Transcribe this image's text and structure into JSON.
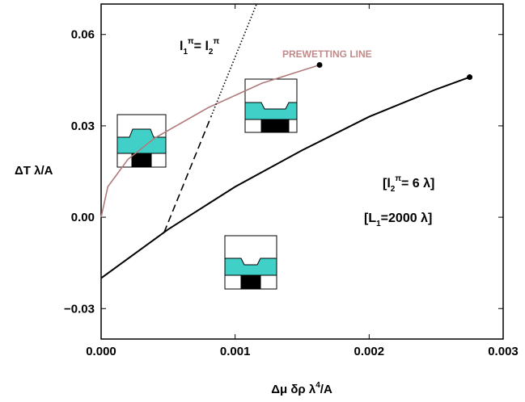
{
  "chart_data": {
    "type": "line",
    "x_label": [
      "Δμ δρ λ",
      "4",
      "/A"
    ],
    "y_label": "ΔT λ/A",
    "xlim": [
      0,
      0.003
    ],
    "ylim": [
      -0.04,
      0.07
    ],
    "xticks": [
      {
        "value": 0,
        "label": "0.000"
      },
      {
        "value": 0.001,
        "label": "0.001"
      },
      {
        "value": 0.002,
        "label": "0.002"
      },
      {
        "value": 0.003,
        "label": "0.003"
      }
    ],
    "yticks": [
      {
        "value": -0.03,
        "label": "−0.03"
      },
      {
        "value": 0,
        "label": "0.00"
      },
      0.03,
      0.06
    ],
    "series": [
      {
        "name": "PREWETTING LINE",
        "color": "#b07a7a",
        "style": "solid",
        "end_marker": true,
        "x": [
          0,
          5e-05,
          0.0002,
          0.0004,
          0.0008,
          0.0012,
          0.00163
        ],
        "values": [
          0,
          0.01,
          0.019,
          0.026,
          0.036,
          0.044,
          0.05
        ]
      },
      {
        "color": "#000000",
        "style": "solid",
        "end_marker": true,
        "x": [
          0,
          0.0005,
          0.001,
          0.0015,
          0.002,
          0.0025,
          0.00275
        ],
        "values": [
          -0.02,
          -0.004,
          0.01,
          0.022,
          0.033,
          0.042,
          0.046
        ]
      },
      {
        "color": "#000000",
        "style": "dashed",
        "x": [
          0.00047,
          0.00082
        ],
        "values": [
          -0.005,
          0.033
        ]
      },
      {
        "color": "#000000",
        "style": "dotted",
        "x": [
          0.00082,
          0.00116
        ],
        "values": [
          0.033,
          0.07
        ]
      }
    ],
    "annotations": {
      "equal_line": [
        "l",
        "1",
        "π",
        "= l",
        "2",
        "π"
      ],
      "thickness": [
        "[l",
        "2",
        "π",
        "= 6 λ]"
      ],
      "length": [
        "[L",
        "1",
        "=2000 λ]"
      ]
    }
  }
}
